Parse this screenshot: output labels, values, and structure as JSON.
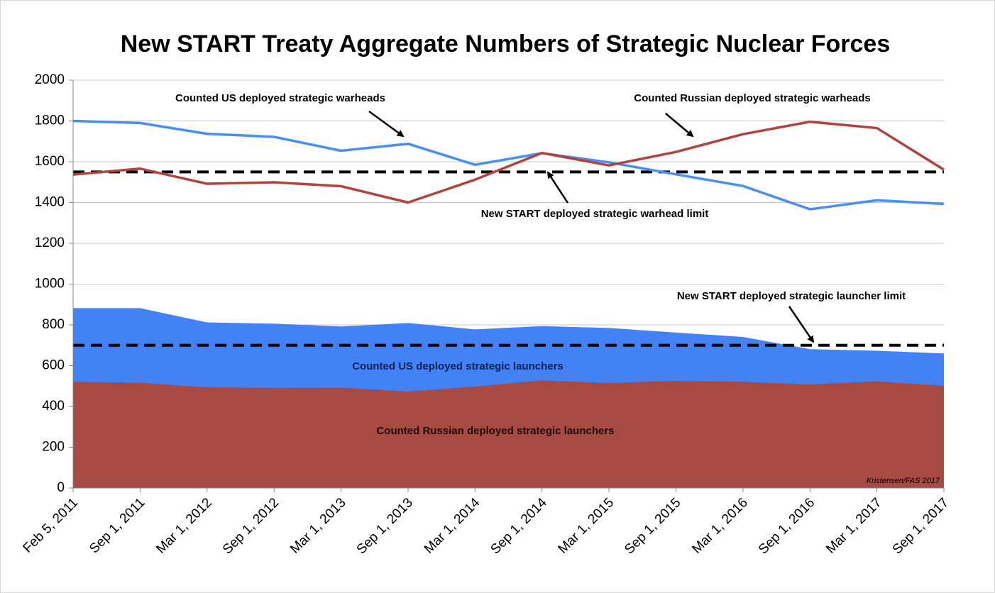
{
  "chart_data": {
    "type": "line-area",
    "title": "New START Treaty Aggregate Numbers of Strategic Nuclear Forces",
    "source": "Kristensen/FAS 2017",
    "categories": [
      "Feb 5, 2011",
      "Sep 1, 2011",
      "Mar 1, 2012",
      "Sep 1, 2012",
      "Mar 1, 2013",
      "Sep 1, 2013",
      "Mar 1, 2014",
      "Sep 1, 2014",
      "Mar 1, 2015",
      "Sep 1, 2015",
      "Mar 1, 2016",
      "Sep 1, 2016",
      "Mar 1, 2017",
      "Sep 1, 2017"
    ],
    "series": [
      {
        "name": "Counted US deployed strategic launchers",
        "kind": "area",
        "color": "#4282f5",
        "values": [
          882,
          882,
          812,
          806,
          792,
          809,
          778,
          794,
          785,
          762,
          741,
          681,
          673,
          660
        ]
      },
      {
        "name": "Counted Russian deployed strategic launchers",
        "kind": "area",
        "color": "#a84a44",
        "values": [
          521,
          516,
          494,
          491,
          492,
          473,
          498,
          528,
          515,
          526,
          521,
          508,
          523,
          501
        ]
      },
      {
        "name": "Counted US deployed strategic warheads",
        "kind": "line",
        "color": "#4a8ef2",
        "values": [
          1800,
          1790,
          1737,
          1722,
          1654,
          1688,
          1585,
          1642,
          1597,
          1538,
          1481,
          1367,
          1411,
          1393
        ]
      },
      {
        "name": "Counted Russian deployed strategic warheads",
        "kind": "line",
        "color": "#b0433d",
        "values": [
          1537,
          1566,
          1492,
          1499,
          1480,
          1400,
          1512,
          1643,
          1582,
          1648,
          1735,
          1796,
          1765,
          1561
        ]
      }
    ],
    "limits": [
      {
        "name": "New START deployed strategic warhead limit",
        "value": 1550
      },
      {
        "name": "New START deployed strategic launcher limit",
        "value": 700
      }
    ],
    "ylim": [
      0,
      2000
    ],
    "yticks": [
      0,
      200,
      400,
      600,
      800,
      1000,
      1200,
      1400,
      1600,
      1800,
      2000
    ],
    "grid": true
  }
}
